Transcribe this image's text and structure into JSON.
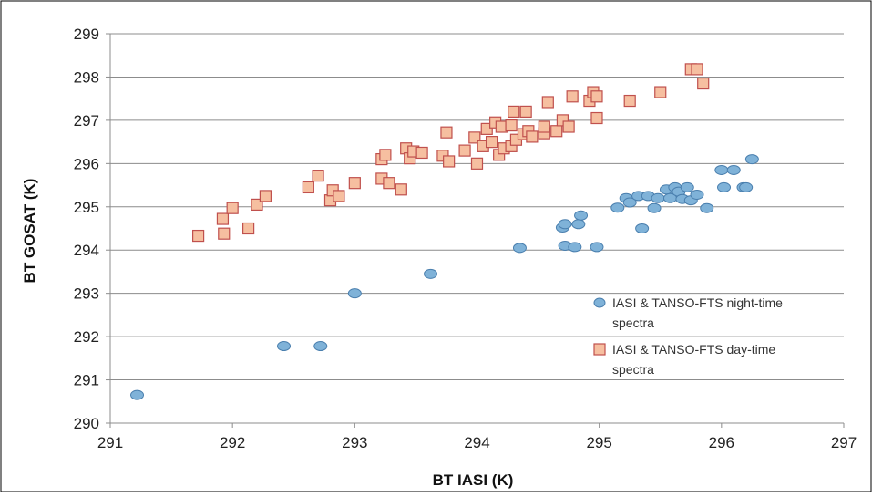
{
  "chart_data": {
    "type": "scatter",
    "title": "",
    "xlabel": "BT IASI (K)",
    "ylabel": "BT GOSAT (K)",
    "xlim": [
      291,
      297
    ],
    "ylim": [
      290,
      299
    ],
    "xticks": [
      291,
      292,
      293,
      294,
      295,
      296,
      297
    ],
    "yticks": [
      290,
      291,
      292,
      293,
      294,
      295,
      296,
      297,
      298,
      299
    ],
    "grid": "horizontal",
    "legend_position": "right",
    "series": [
      {
        "name": "IASI & TANSO-FTS night-time spectra",
        "legend_lines": [
          "IASI & TANSO-FTS night-time",
          "spectra"
        ],
        "marker": "circle",
        "color": "#7fb2d8",
        "edge_color": "#4a7fae",
        "points": [
          [
            291.22,
            290.65
          ],
          [
            292.42,
            291.78
          ],
          [
            292.72,
            291.78
          ],
          [
            293.0,
            293.0
          ],
          [
            293.62,
            293.45
          ],
          [
            294.35,
            294.05
          ],
          [
            294.7,
            294.52
          ],
          [
            294.72,
            294.6
          ],
          [
            294.72,
            294.1
          ],
          [
            294.8,
            294.07
          ],
          [
            294.83,
            294.6
          ],
          [
            294.85,
            294.8
          ],
          [
            294.98,
            294.07
          ],
          [
            295.15,
            294.98
          ],
          [
            295.22,
            295.2
          ],
          [
            295.25,
            295.1
          ],
          [
            295.32,
            295.25
          ],
          [
            295.35,
            294.5
          ],
          [
            295.4,
            295.25
          ],
          [
            295.45,
            294.97
          ],
          [
            295.48,
            295.2
          ],
          [
            295.55,
            295.4
          ],
          [
            295.58,
            295.2
          ],
          [
            295.62,
            295.45
          ],
          [
            295.65,
            295.35
          ],
          [
            295.68,
            295.18
          ],
          [
            295.72,
            295.45
          ],
          [
            295.75,
            295.15
          ],
          [
            295.8,
            295.28
          ],
          [
            295.88,
            294.97
          ],
          [
            296.0,
            295.85
          ],
          [
            296.02,
            295.45
          ],
          [
            296.1,
            295.85
          ],
          [
            296.18,
            295.45
          ],
          [
            296.2,
            295.45
          ],
          [
            296.25,
            296.1
          ]
        ]
      },
      {
        "name": "IASI & TANSO-FTS day-time spectra",
        "legend_lines": [
          "IASI & TANSO-FTS day-time",
          "spectra"
        ],
        "marker": "square",
        "color": "#f6bfa0",
        "edge_color": "#c0504d",
        "points": [
          [
            291.72,
            294.33
          ],
          [
            291.92,
            294.72
          ],
          [
            291.93,
            294.38
          ],
          [
            292.0,
            294.97
          ],
          [
            292.13,
            294.5
          ],
          [
            292.2,
            295.05
          ],
          [
            292.27,
            295.25
          ],
          [
            292.62,
            295.45
          ],
          [
            292.7,
            295.72
          ],
          [
            292.8,
            295.15
          ],
          [
            292.82,
            295.38
          ],
          [
            292.87,
            295.25
          ],
          [
            293.0,
            295.55
          ],
          [
            293.22,
            295.65
          ],
          [
            293.22,
            296.1
          ],
          [
            293.25,
            296.2
          ],
          [
            293.28,
            295.55
          ],
          [
            293.38,
            295.4
          ],
          [
            293.42,
            296.35
          ],
          [
            293.45,
            296.12
          ],
          [
            293.48,
            296.28
          ],
          [
            293.55,
            296.25
          ],
          [
            293.72,
            296.18
          ],
          [
            293.75,
            296.72
          ],
          [
            293.77,
            296.05
          ],
          [
            293.9,
            296.3
          ],
          [
            293.98,
            296.6
          ],
          [
            294.0,
            296.0
          ],
          [
            294.05,
            296.4
          ],
          [
            294.08,
            296.8
          ],
          [
            294.12,
            296.5
          ],
          [
            294.15,
            296.95
          ],
          [
            294.18,
            296.2
          ],
          [
            294.2,
            296.85
          ],
          [
            294.22,
            296.35
          ],
          [
            294.28,
            296.4
          ],
          [
            294.28,
            296.88
          ],
          [
            294.3,
            297.2
          ],
          [
            294.32,
            296.55
          ],
          [
            294.38,
            296.68
          ],
          [
            294.4,
            297.2
          ],
          [
            294.42,
            296.75
          ],
          [
            294.45,
            296.62
          ],
          [
            294.55,
            296.7
          ],
          [
            294.55,
            296.85
          ],
          [
            294.58,
            297.42
          ],
          [
            294.65,
            296.75
          ],
          [
            294.7,
            297.0
          ],
          [
            294.75,
            296.85
          ],
          [
            294.78,
            297.55
          ],
          [
            294.92,
            297.45
          ],
          [
            294.95,
            297.65
          ],
          [
            294.98,
            297.55
          ],
          [
            294.98,
            297.05
          ],
          [
            295.25,
            297.45
          ],
          [
            295.5,
            297.65
          ],
          [
            295.75,
            298.18
          ],
          [
            295.8,
            298.18
          ],
          [
            295.85,
            297.85
          ]
        ]
      }
    ]
  }
}
